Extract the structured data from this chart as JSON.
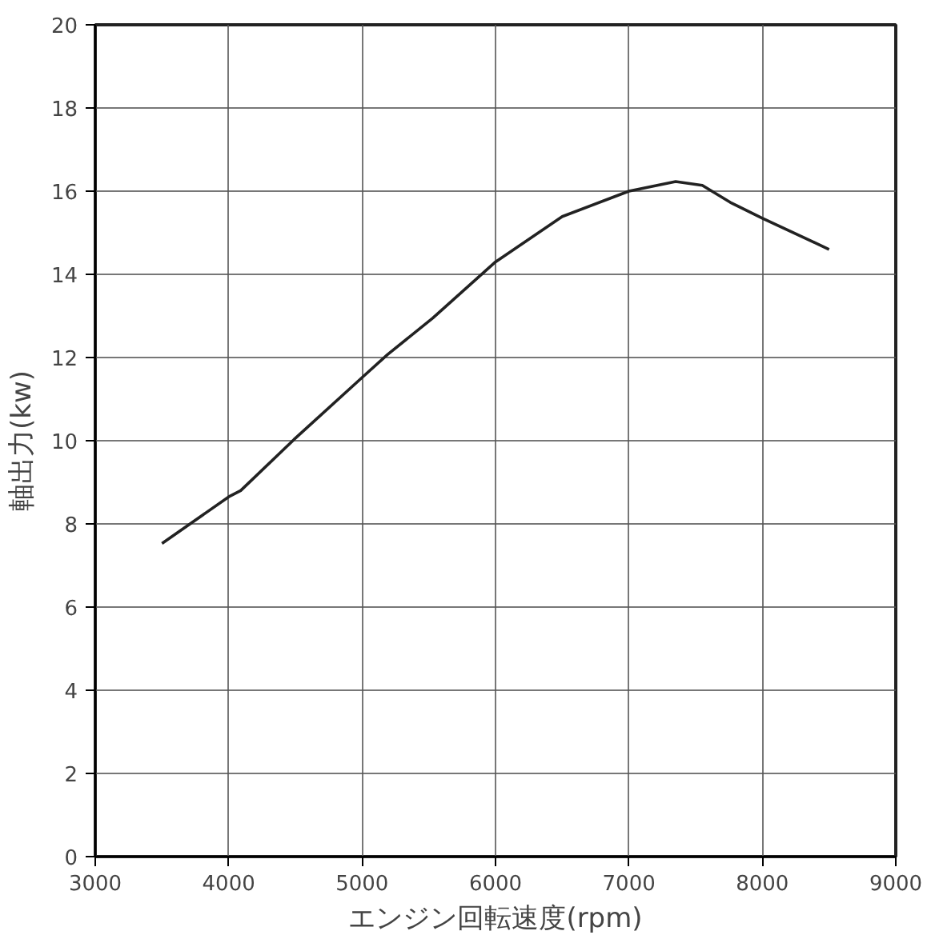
{
  "chart_data": {
    "type": "line",
    "xlabel": "エンジン回転速度(rpm)",
    "ylabel": "軸出力(kw)",
    "x": [
      3500,
      4000,
      4090,
      4490,
      5000,
      5190,
      5530,
      6000,
      6500,
      7000,
      7350,
      7550,
      7760,
      8000,
      8500
    ],
    "series": [
      {
        "color": "#222222",
        "values": [
          7.53,
          8.65,
          8.8,
          10.03,
          11.52,
          12.07,
          12.95,
          14.3,
          15.39,
          16.0,
          16.23,
          16.14,
          15.73,
          15.35,
          14.6
        ]
      }
    ],
    "xlim": [
      3000,
      9000
    ],
    "xticks": [
      3000,
      4000,
      5000,
      6000,
      7000,
      8000,
      9000
    ],
    "ylim": [
      0,
      20
    ],
    "yticks": [
      0,
      2,
      4,
      6,
      8,
      10,
      12,
      14,
      16,
      18,
      20
    ],
    "grid": true,
    "marker": "none",
    "line_style": "solid"
  }
}
